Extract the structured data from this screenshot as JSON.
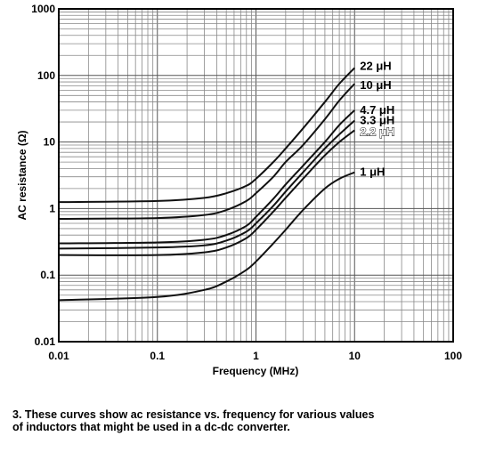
{
  "chart_data": {
    "type": "line",
    "xlabel": "Frequency (MHz)",
    "ylabel": "AC resistance (Ω)",
    "xscale": "log",
    "yscale": "log",
    "xlim": [
      0.01,
      100
    ],
    "ylim": [
      0.01,
      1000
    ],
    "xticks": [
      "0.01",
      "0.1",
      "1",
      "10",
      "100"
    ],
    "yticks": [
      "0.01",
      "0.1",
      "1",
      "10",
      "100",
      "1000"
    ],
    "grid": true,
    "series": [
      {
        "name": "22 μH",
        "outline_label": false,
        "x": [
          0.01,
          0.1,
          0.3,
          0.5,
          0.8,
          1,
          1.5,
          2,
          3,
          5,
          7,
          10
        ],
        "y": [
          1.25,
          1.3,
          1.45,
          1.7,
          2.2,
          2.8,
          5,
          8,
          16,
          40,
          75,
          130
        ]
      },
      {
        "name": "10 μH",
        "outline_label": false,
        "x": [
          0.01,
          0.1,
          0.3,
          0.5,
          0.8,
          1,
          1.5,
          2,
          3,
          5,
          7,
          10
        ],
        "y": [
          0.7,
          0.72,
          0.8,
          0.95,
          1.3,
          1.7,
          3,
          5,
          9,
          22,
          42,
          75
        ]
      },
      {
        "name": "4.7 μH",
        "outline_label": false,
        "x": [
          0.01,
          0.1,
          0.3,
          0.5,
          0.8,
          1,
          1.5,
          2,
          3,
          5,
          7,
          10
        ],
        "y": [
          0.3,
          0.31,
          0.34,
          0.4,
          0.55,
          0.75,
          1.4,
          2.3,
          4.4,
          10,
          18,
          30
        ]
      },
      {
        "name": "3.3 μH",
        "outline_label": false,
        "x": [
          0.01,
          0.1,
          0.3,
          0.5,
          0.8,
          1,
          1.5,
          2,
          3,
          5,
          7,
          10
        ],
        "y": [
          0.25,
          0.26,
          0.28,
          0.33,
          0.45,
          0.6,
          1.1,
          1.8,
          3.5,
          8,
          13,
          21
        ]
      },
      {
        "name": "2.2 μH",
        "outline_label": true,
        "x": [
          0.01,
          0.1,
          0.3,
          0.5,
          0.8,
          1,
          1.5,
          2,
          3,
          5,
          7,
          10
        ],
        "y": [
          0.2,
          0.2,
          0.22,
          0.26,
          0.36,
          0.48,
          0.9,
          1.45,
          2.8,
          6.3,
          10,
          15
        ]
      },
      {
        "name": "1 μH",
        "outline_label": false,
        "x": [
          0.01,
          0.1,
          0.3,
          0.5,
          0.8,
          1,
          1.5,
          2,
          3,
          5,
          7,
          10
        ],
        "y": [
          0.042,
          0.047,
          0.06,
          0.08,
          0.12,
          0.16,
          0.3,
          0.48,
          0.95,
          2,
          2.8,
          3.5
        ]
      }
    ]
  },
  "caption": {
    "line1": "3. These curves show ac resistance vs. frequency for various values",
    "line2": "of inductors that might be used in a dc-dc converter."
  }
}
